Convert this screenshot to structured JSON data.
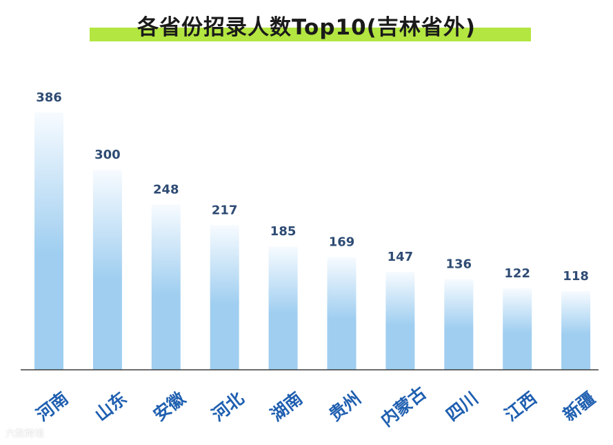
{
  "title": "各省份招录人数Top10(吉林省外)",
  "watermark": "六数跨境",
  "colors": {
    "title_highlight": "#b3e641",
    "bar_top": "#f7fbff",
    "bar_bottom": "#9fcef0",
    "value_label": "#2e4b73",
    "category_label": "#1f5fb0",
    "axis": "#3c3c3c"
  },
  "chart_data": {
    "type": "bar",
    "title": "各省份招录人数Top10(吉林省外)",
    "categories": [
      "河南",
      "山东",
      "安徽",
      "河北",
      "湖南",
      "贵州",
      "内蒙古",
      "四川",
      "江西",
      "新疆"
    ],
    "values": [
      386,
      300,
      248,
      217,
      185,
      169,
      147,
      136,
      122,
      118
    ],
    "xlabel": "",
    "ylabel": "",
    "ylim": [
      0,
      386
    ],
    "grid": false,
    "legend": "none",
    "data_labels": true
  }
}
